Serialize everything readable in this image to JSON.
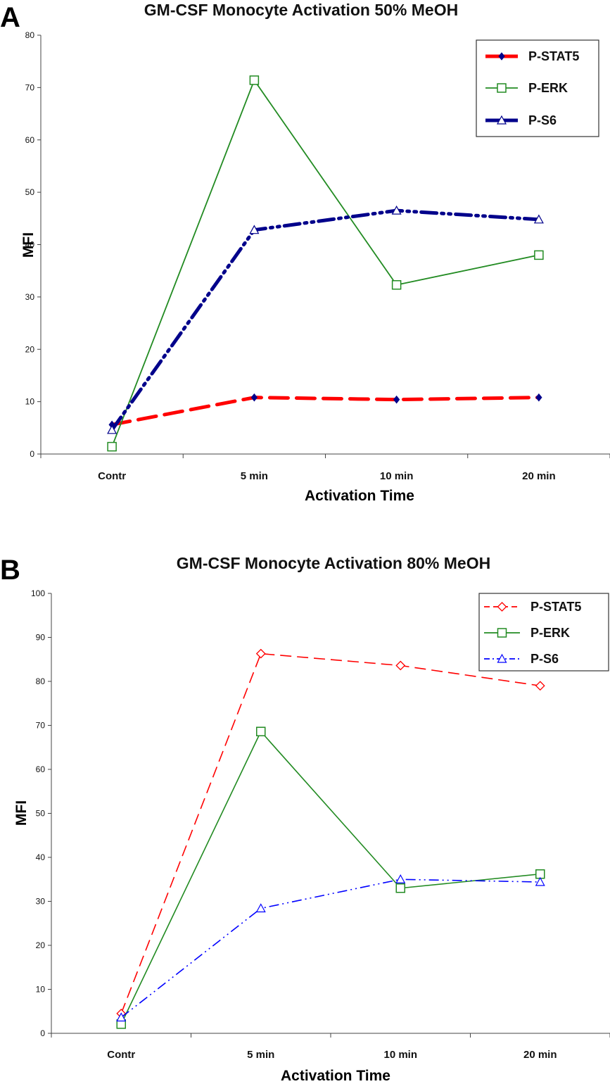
{
  "chart_data": [
    {
      "panel_letter": "A",
      "type": "line",
      "title": "GM-CSF Monocyte Activation 50% MeOH",
      "xlabel": "Activation Time",
      "ylabel": "MFI",
      "categories": [
        "Contr",
        "5 min",
        "10 min",
        "20 min"
      ],
      "ylim": [
        0,
        80
      ],
      "yticks": [
        0,
        10,
        20,
        30,
        40,
        50,
        60,
        70,
        80
      ],
      "grid": false,
      "legend": "top-right, boxed",
      "series": [
        {
          "name": "P-STAT5",
          "color": "#ff0000",
          "line_style": "long-dash",
          "marker": "filled-diamond",
          "marker_color": "#00008b",
          "values": [
            5.6,
            10.8,
            10.4,
            10.8
          ]
        },
        {
          "name": "P-ERK",
          "color": "#228b22",
          "line_style": "solid",
          "marker": "open-square",
          "values": [
            1.4,
            71.4,
            32.3,
            38.0
          ]
        },
        {
          "name": "P-S6",
          "color": "#00008b",
          "line_style": "dash-dot-dot",
          "marker": "open-triangle",
          "values": [
            4.6,
            42.8,
            46.5,
            44.8
          ]
        }
      ]
    },
    {
      "panel_letter": "B",
      "type": "line",
      "title": "GM-CSF Monocyte Activation 80% MeOH",
      "xlabel": "Activation Time",
      "ylabel": "MFI",
      "categories": [
        "Contr",
        "5 min",
        "10 min",
        "20 min"
      ],
      "ylim": [
        0,
        100
      ],
      "yticks": [
        0,
        10,
        20,
        30,
        40,
        50,
        60,
        70,
        80,
        90,
        100
      ],
      "grid": false,
      "legend": "top-right, boxed",
      "series": [
        {
          "name": "P-STAT5",
          "color": "#ff0000",
          "line_style": "dash",
          "marker": "open-diamond",
          "values": [
            4.5,
            86.3,
            83.6,
            79.0
          ]
        },
        {
          "name": "P-ERK",
          "color": "#228b22",
          "line_style": "solid",
          "marker": "open-square",
          "values": [
            2.1,
            68.6,
            33.0,
            36.2
          ]
        },
        {
          "name": "P-S6",
          "color": "#0000ff",
          "line_style": "dash-dot-dot",
          "marker": "open-triangle",
          "values": [
            3.6,
            28.4,
            35.0,
            34.4
          ]
        }
      ]
    }
  ]
}
